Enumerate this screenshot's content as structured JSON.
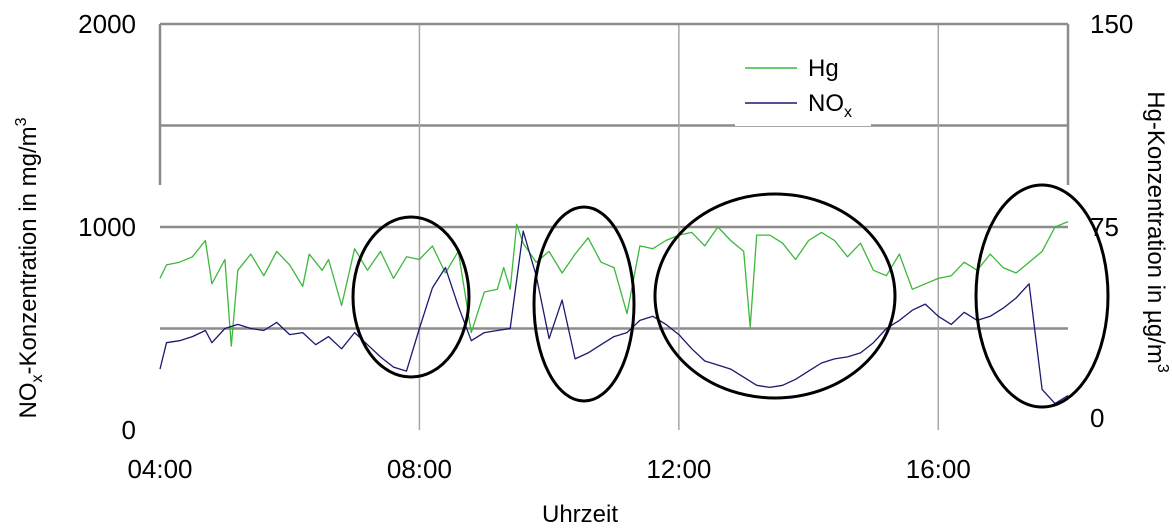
{
  "chart_data": {
    "type": "line",
    "xlabel": "Uhrzeit",
    "ylabel_left": "NOx-Konzentration in mg/m³",
    "ylabel_left_parts": {
      "base": "NO",
      "sub": "x",
      "rest": "-Konzentration in mg/m",
      "sup": "3"
    },
    "ylabel_right": "Hg-Konzentration in µg/m³",
    "ylabel_right_parts": {
      "rest": "Hg-Konzentration in µg/m",
      "sup": "3"
    },
    "x_range": [
      4,
      18
    ],
    "x_ticks": [
      {
        "value": 4,
        "label": "04:00"
      },
      {
        "value": 8,
        "label": "08:00"
      },
      {
        "value": 12,
        "label": "12:00"
      },
      {
        "value": 16,
        "label": "16:00"
      }
    ],
    "y_left_range": [
      0,
      2000
    ],
    "y_left_ticks": [
      {
        "value": 0,
        "label": "0"
      },
      {
        "value": 1000,
        "label": "1000"
      },
      {
        "value": 2000,
        "label": "2000"
      }
    ],
    "y_right_range": [
      0,
      150
    ],
    "y_right_ticks": [
      {
        "value": 0,
        "label": "0"
      },
      {
        "value": 75,
        "label": "75"
      },
      {
        "value": 150,
        "label": "150"
      }
    ],
    "grid": {
      "horizontal_left_units": [
        500,
        1000,
        1500
      ],
      "vertical_hours": [
        8,
        12,
        16
      ]
    },
    "legend": {
      "position": "top-right",
      "items": [
        {
          "name": "Hg",
          "color": "#3cb83c"
        },
        {
          "name": "NOx",
          "name_parts": {
            "base": "NO",
            "sub": "x"
          },
          "color": "#1a1a6e"
        }
      ]
    },
    "series": [
      {
        "name": "Hg",
        "axis": "right",
        "color": "#3cb83c",
        "x": [
          4.0,
          4.1,
          4.3,
          4.5,
          4.7,
          4.8,
          5.0,
          5.1,
          5.2,
          5.4,
          5.6,
          5.8,
          6.0,
          6.2,
          6.3,
          6.5,
          6.6,
          6.8,
          7.0,
          7.2,
          7.4,
          7.6,
          7.8,
          8.0,
          8.2,
          8.4,
          8.6,
          8.8,
          9.0,
          9.2,
          9.3,
          9.4,
          9.5,
          9.6,
          9.8,
          10.0,
          10.2,
          10.4,
          10.6,
          10.8,
          11.0,
          11.2,
          11.4,
          11.6,
          11.8,
          12.0,
          12.2,
          12.4,
          12.6,
          12.8,
          13.0,
          13.1,
          13.2,
          13.4,
          13.6,
          13.8,
          14.0,
          14.2,
          14.4,
          14.6,
          14.8,
          15.0,
          15.2,
          15.4,
          15.6,
          15.8,
          16.0,
          16.2,
          16.4,
          16.6,
          16.8,
          17.0,
          17.2,
          17.4,
          17.6,
          17.8,
          18.0
        ],
        "y": [
          56,
          61,
          62,
          64,
          70,
          54,
          63,
          31,
          59,
          65,
          57,
          66,
          61,
          53,
          65,
          59,
          63,
          46,
          67,
          59,
          66,
          56,
          64,
          63,
          68,
          58,
          66,
          36,
          51,
          52,
          60,
          52,
          76,
          69,
          62,
          66,
          58,
          65,
          71,
          62,
          60,
          43,
          68,
          67,
          70,
          72,
          73,
          68,
          75,
          70,
          66,
          38,
          72,
          72,
          69,
          63,
          70,
          73,
          70,
          64,
          69,
          59,
          57,
          65,
          52,
          54,
          56,
          57,
          62,
          59,
          65,
          60,
          58,
          62,
          66,
          75,
          77
        ]
      },
      {
        "name": "NOx",
        "axis": "left",
        "color": "#1a1a6e",
        "x": [
          4.0,
          4.1,
          4.3,
          4.5,
          4.7,
          4.8,
          5.0,
          5.2,
          5.4,
          5.6,
          5.8,
          6.0,
          6.2,
          6.4,
          6.6,
          6.8,
          7.0,
          7.2,
          7.4,
          7.6,
          7.8,
          8.0,
          8.2,
          8.4,
          8.6,
          8.8,
          9.0,
          9.2,
          9.4,
          9.6,
          9.8,
          10.0,
          10.2,
          10.4,
          10.6,
          10.8,
          11.0,
          11.2,
          11.4,
          11.6,
          11.8,
          12.0,
          12.2,
          12.4,
          12.6,
          12.8,
          13.0,
          13.2,
          13.4,
          13.6,
          13.8,
          14.0,
          14.2,
          14.4,
          14.6,
          14.8,
          15.0,
          15.2,
          15.4,
          15.6,
          15.8,
          16.0,
          16.2,
          16.4,
          16.6,
          16.8,
          17.0,
          17.2,
          17.4,
          17.6,
          17.8,
          18.0
        ],
        "y": [
          300,
          430,
          440,
          460,
          490,
          430,
          500,
          520,
          500,
          490,
          530,
          470,
          480,
          420,
          460,
          400,
          480,
          420,
          360,
          310,
          290,
          500,
          700,
          800,
          610,
          440,
          480,
          490,
          500,
          980,
          760,
          450,
          640,
          350,
          380,
          420,
          460,
          480,
          540,
          560,
          520,
          470,
          400,
          340,
          320,
          300,
          260,
          220,
          210,
          220,
          250,
          290,
          330,
          350,
          360,
          380,
          430,
          500,
          540,
          590,
          620,
          560,
          520,
          580,
          540,
          560,
          600,
          650,
          720,
          200,
          130,
          170
        ]
      }
    ]
  }
}
